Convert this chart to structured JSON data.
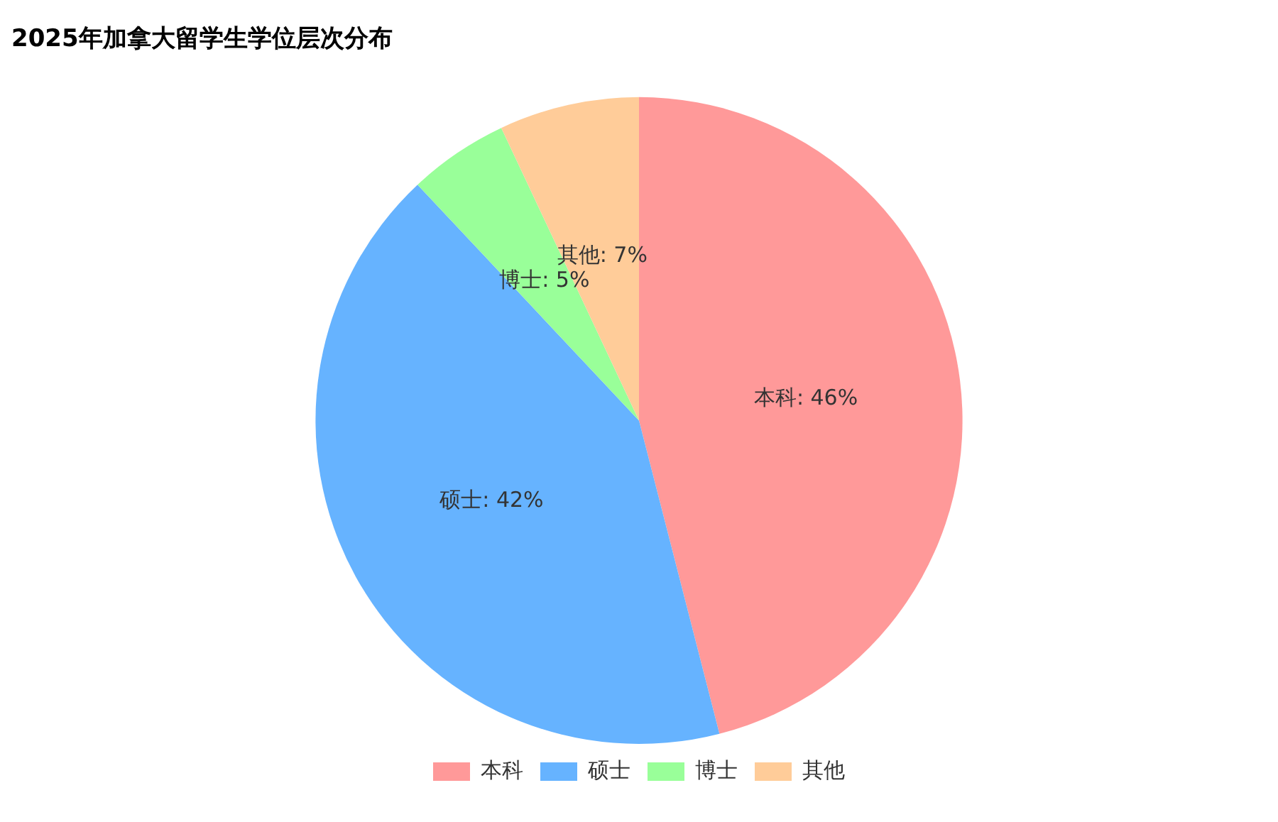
{
  "chart_data": {
    "type": "pie",
    "title": "2025年加拿大留学生学位层次分布",
    "categories": [
      "本科",
      "硕士",
      "博士",
      "其他"
    ],
    "values": [
      46,
      42,
      5,
      7
    ],
    "colors": [
      "#ff9999",
      "#66b3ff",
      "#99ff99",
      "#ffcc99"
    ],
    "value_labels": [
      "本科: 46%",
      "硕士: 42%",
      "博士: 5%",
      "其他: 7%"
    ],
    "legend": "bottom"
  }
}
